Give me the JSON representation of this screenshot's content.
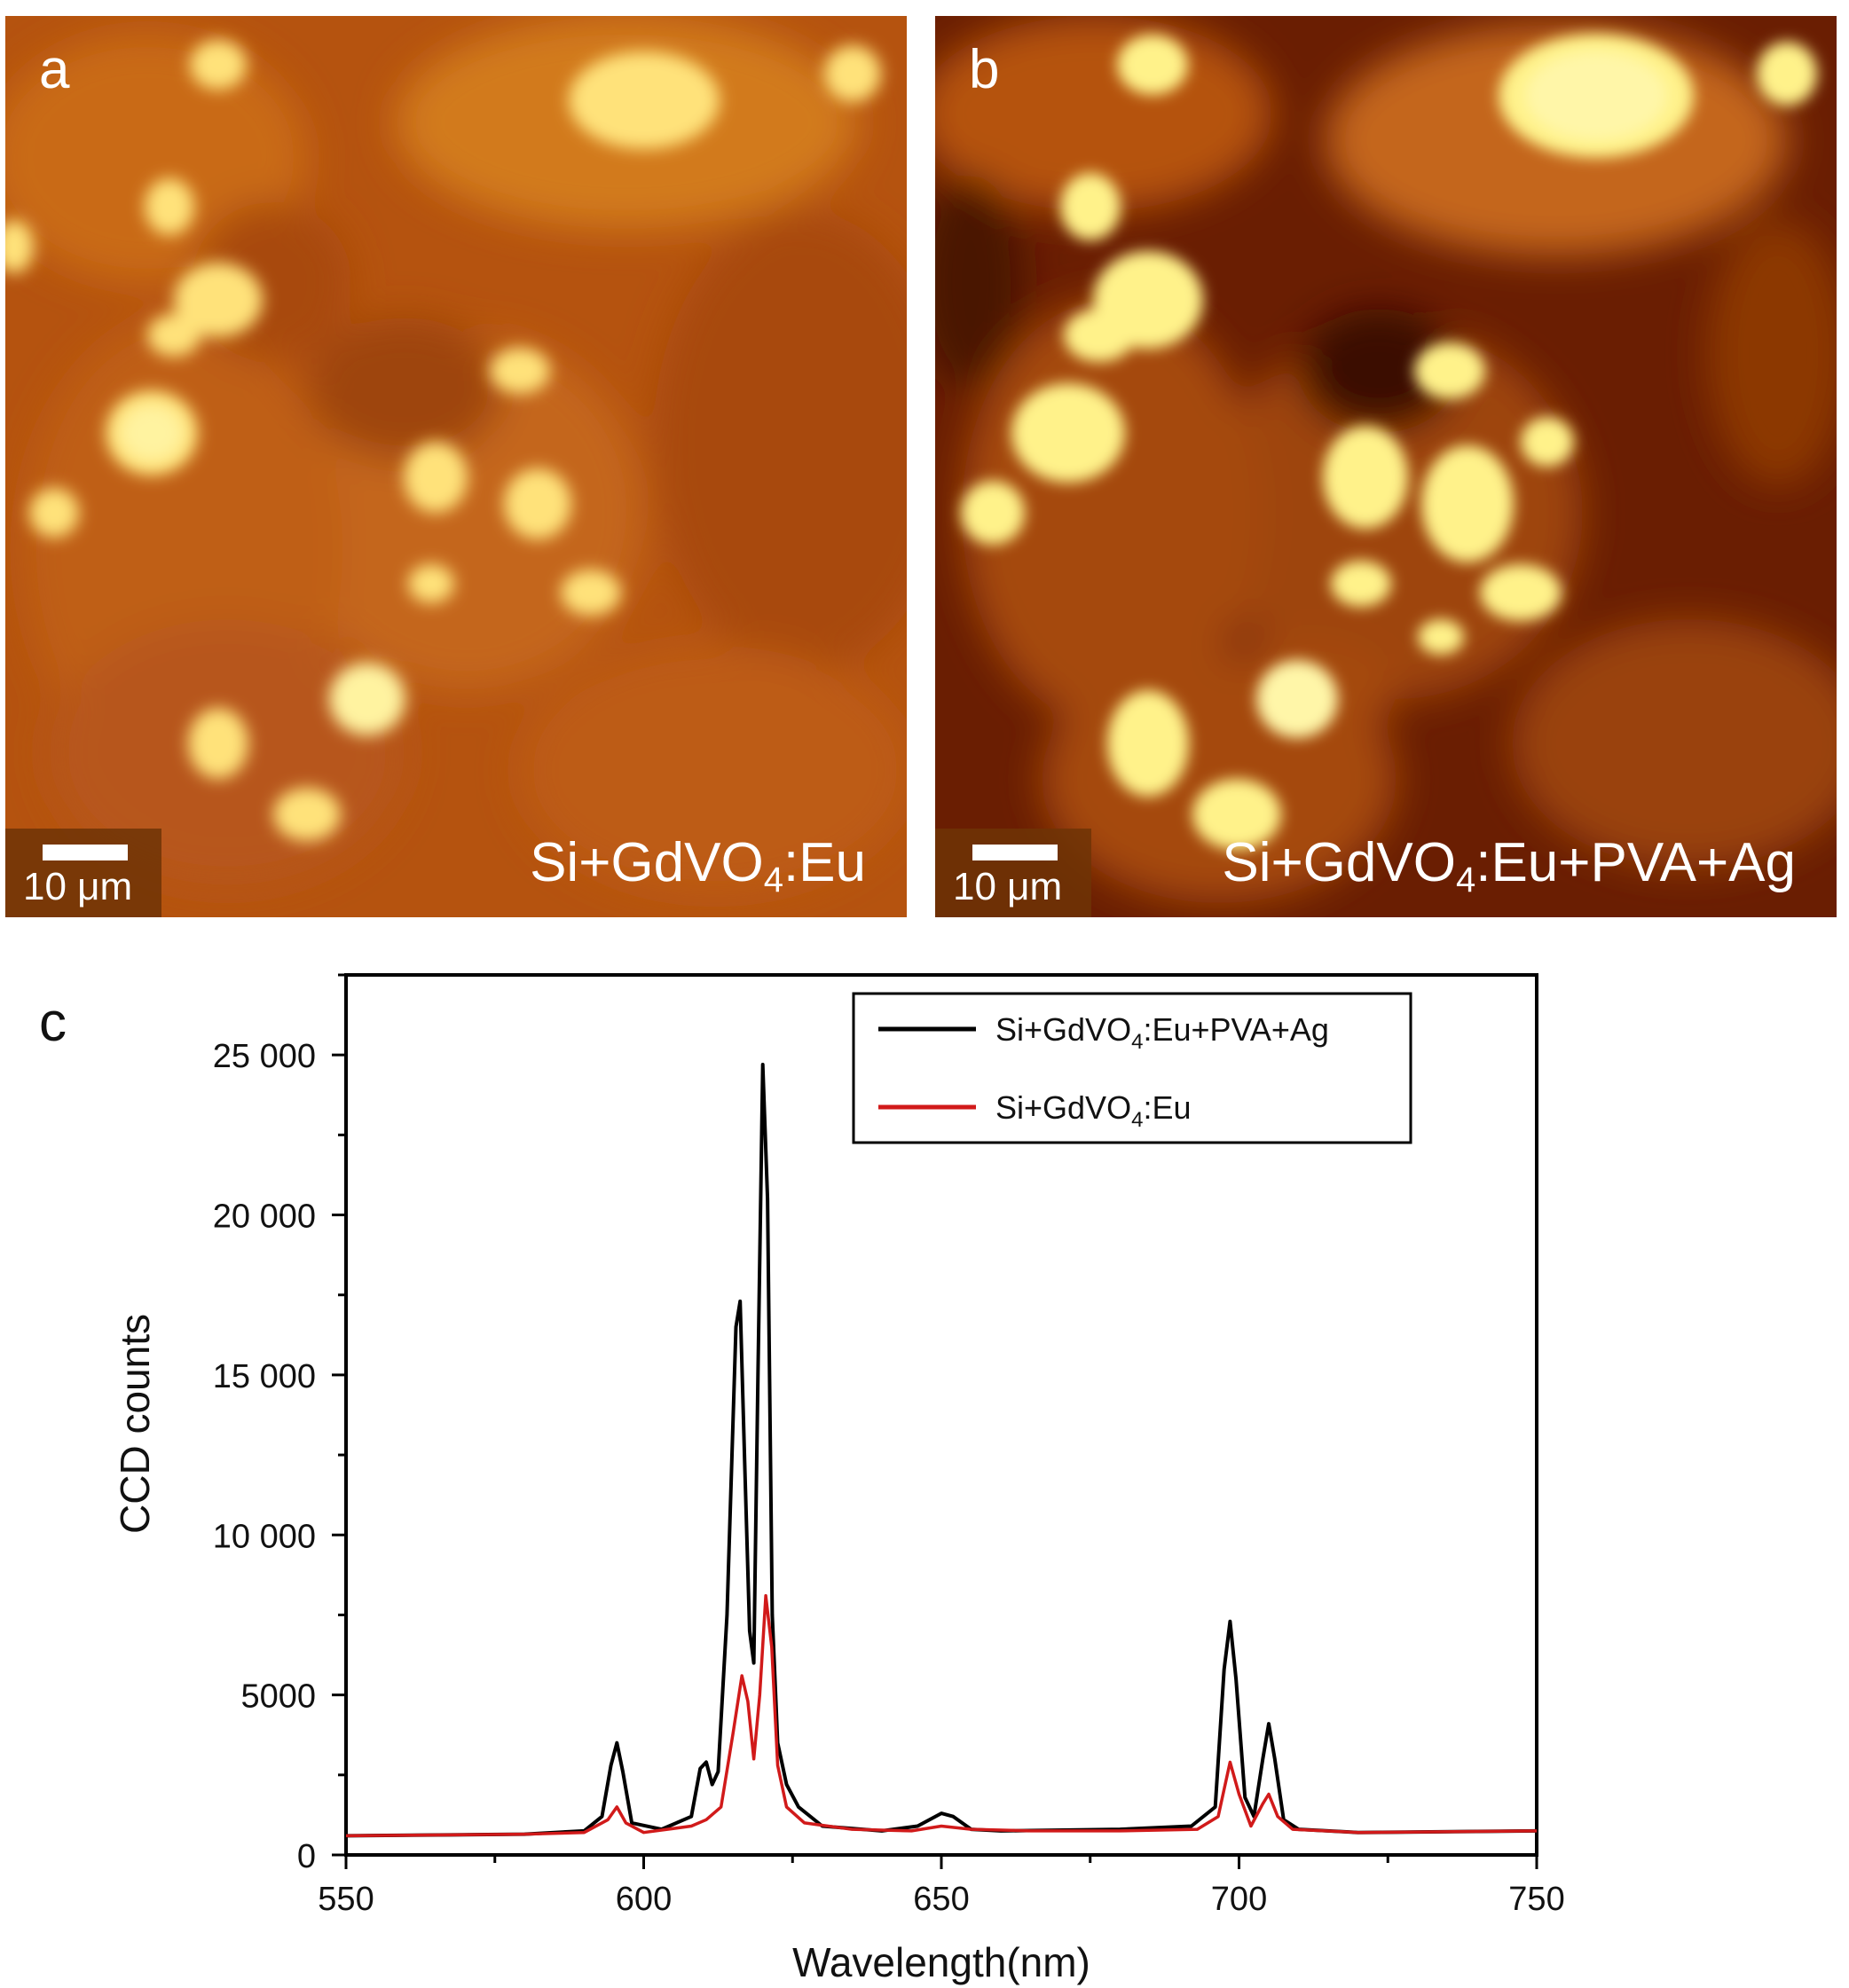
{
  "panel_a": {
    "letter": "a",
    "scale_label": "10 μm",
    "sample_prefix": "Si+GdVO",
    "sample_sub": "4",
    "sample_suffix": ":Eu"
  },
  "panel_b": {
    "letter": "b",
    "scale_label": "10 μm",
    "sample_prefix": "Si+GdVO",
    "sample_sub": "4",
    "sample_suffix": ":Eu+PVA+Ag"
  },
  "panel_c": {
    "letter": "c"
  },
  "colors": {
    "series_enhanced": "#000000",
    "series_plain": "#d11a1a"
  },
  "chart_data": {
    "type": "line",
    "xlabel": "Wavelength(nm)",
    "ylabel": "CCD counts",
    "xlim": [
      550,
      750
    ],
    "ylim": [
      0,
      27500
    ],
    "xticks": [
      550,
      600,
      650,
      700,
      750
    ],
    "xtick_labels": [
      "550",
      "600",
      "650",
      "700",
      "750"
    ],
    "yticks": [
      0,
      5000,
      10000,
      15000,
      20000,
      25000
    ],
    "ytick_labels": [
      "0",
      "5000",
      "10 000",
      "15 000",
      "20 000",
      "25 000"
    ],
    "legend_position": "top-right",
    "grid": false,
    "series": [
      {
        "name": "Si+GdVO4:Eu+PVA+Ag",
        "legend_prefix": "Si+GdVO",
        "legend_sub": "4",
        "legend_suffix": ":Eu+PVA+Ag",
        "color": "#000000",
        "x": [
          550,
          580,
          590,
          593,
          594.5,
          595.5,
          596.5,
          598,
          603,
          608,
          609.5,
          610.5,
          611.5,
          612.5,
          614,
          615.5,
          616.2,
          617,
          617.8,
          618.5,
          619.2,
          620,
          620.8,
          621.6,
          622.5,
          624,
          626,
          630,
          640,
          646,
          650,
          652,
          655,
          660,
          680,
          692,
          696,
          697.5,
          698.5,
          699.5,
          701,
          702.5,
          704,
          705,
          706,
          707.5,
          710,
          720,
          750
        ],
        "y": [
          600,
          650,
          750,
          1200,
          2800,
          3500,
          2600,
          1000,
          800,
          1200,
          2700,
          2900,
          2200,
          2600,
          7500,
          16500,
          17300,
          12000,
          7000,
          6000,
          15000,
          24700,
          20500,
          7500,
          3500,
          2200,
          1500,
          900,
          750,
          900,
          1300,
          1200,
          800,
          750,
          800,
          900,
          1500,
          5800,
          7300,
          5500,
          1800,
          1200,
          3000,
          4100,
          3000,
          1100,
          800,
          700,
          750
        ]
      },
      {
        "name": "Si+GdVO4:Eu",
        "legend_prefix": "Si+GdVO",
        "legend_sub": "4",
        "legend_suffix": ":Eu",
        "color": "#d11a1a",
        "x": [
          550,
          580,
          590,
          594,
          595.5,
          597,
          600,
          608,
          610.5,
          613,
          615,
          616.5,
          617.5,
          618.5,
          619.5,
          620.5,
          621.5,
          622.5,
          624,
          627,
          635,
          645,
          650,
          655,
          665,
          680,
          693,
          696.5,
          698.5,
          700,
          702,
          704,
          705,
          706.5,
          709,
          720,
          750
        ],
        "y": [
          600,
          650,
          700,
          1100,
          1500,
          1000,
          700,
          900,
          1100,
          1500,
          3800,
          5600,
          4800,
          3000,
          5000,
          8100,
          6500,
          2800,
          1500,
          1000,
          800,
          750,
          900,
          800,
          750,
          750,
          800,
          1200,
          2900,
          1900,
          900,
          1600,
          1900,
          1200,
          800,
          700,
          750
        ]
      }
    ]
  }
}
